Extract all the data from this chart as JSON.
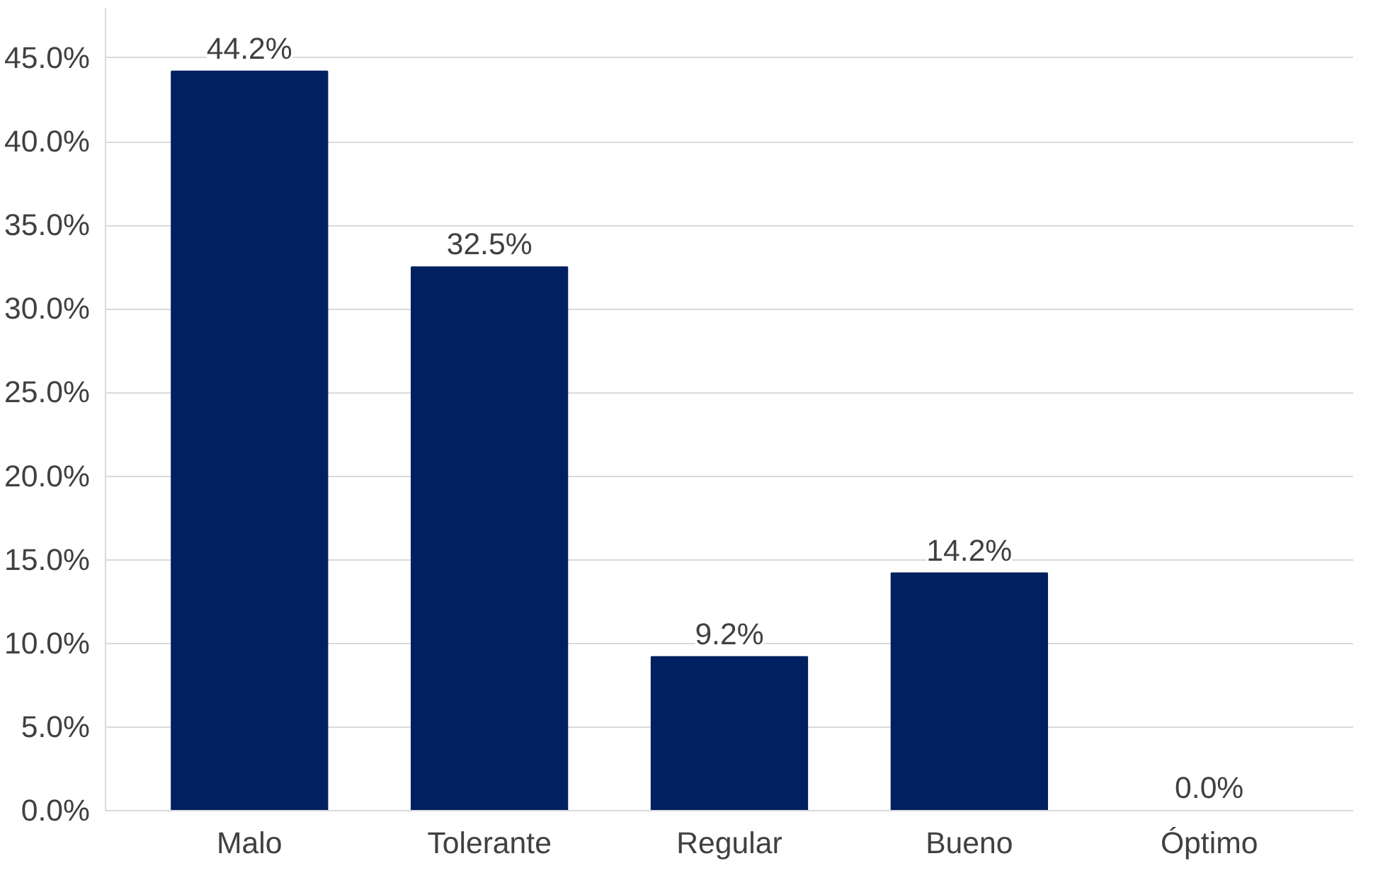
{
  "chart_data": {
    "type": "bar",
    "categories": [
      "Malo",
      "Tolerante",
      "Regular",
      "Bueno",
      "Óptimo"
    ],
    "values": [
      44.2,
      32.5,
      9.2,
      14.2,
      0.0
    ],
    "value_labels": [
      "44.2%",
      "32.5%",
      "9.2%",
      "14.2%",
      "0.0%"
    ],
    "color": "#002060",
    "ylim": [
      0,
      48
    ],
    "yticks": [
      {
        "value": 0,
        "label": "0.0%"
      },
      {
        "value": 5,
        "label": "5.0%"
      },
      {
        "value": 10,
        "label": "10.0%"
      },
      {
        "value": 15,
        "label": "15.0%"
      },
      {
        "value": 20,
        "label": "20.0%"
      },
      {
        "value": 25,
        "label": "25.0%"
      },
      {
        "value": 30,
        "label": "30.0%"
      },
      {
        "value": 35,
        "label": "35.0%"
      },
      {
        "value": 40,
        "label": "40.0%"
      },
      {
        "value": 45,
        "label": "45.0%"
      }
    ],
    "grid": "y"
  }
}
